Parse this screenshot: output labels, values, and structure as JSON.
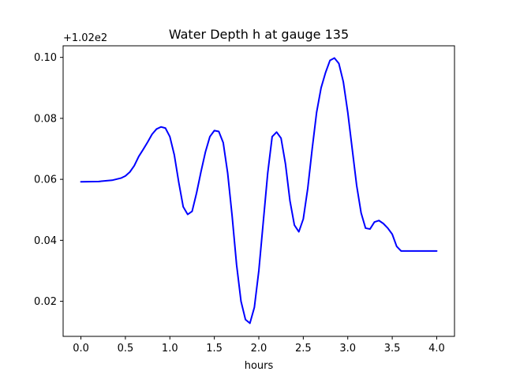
{
  "chart_data": {
    "type": "line",
    "title": "Water Depth h at gauge 135",
    "xlabel": "hours",
    "ylabel": "",
    "offset_label": "+1.02e2",
    "xlim": [
      -0.2,
      4.2
    ],
    "ylim": [
      0.0085,
      0.1038
    ],
    "xticks": [
      0.0,
      0.5,
      1.0,
      1.5,
      2.0,
      2.5,
      3.0,
      3.5,
      4.0
    ],
    "xtick_labels": [
      "0.0",
      "0.5",
      "1.0",
      "1.5",
      "2.0",
      "2.5",
      "3.0",
      "3.5",
      "4.0"
    ],
    "yticks": [
      0.02,
      0.04,
      0.06,
      0.08,
      0.1
    ],
    "ytick_labels": [
      "0.02",
      "0.04",
      "0.06",
      "0.08",
      "0.10"
    ],
    "grid": false,
    "series": [
      {
        "color": "#0000ff",
        "x": [
          0.0,
          0.2,
          0.35,
          0.45,
          0.5,
          0.55,
          0.6,
          0.65,
          0.7,
          0.75,
          0.8,
          0.85,
          0.9,
          0.95,
          1.0,
          1.05,
          1.1,
          1.15,
          1.2,
          1.25,
          1.3,
          1.35,
          1.4,
          1.45,
          1.5,
          1.55,
          1.6,
          1.65,
          1.7,
          1.75,
          1.8,
          1.85,
          1.9,
          1.95,
          2.0,
          2.05,
          2.1,
          2.15,
          2.2,
          2.25,
          2.3,
          2.35,
          2.4,
          2.45,
          2.5,
          2.55,
          2.6,
          2.65,
          2.7,
          2.75,
          2.8,
          2.85,
          2.9,
          2.95,
          3.0,
          3.05,
          3.1,
          3.15,
          3.2,
          3.25,
          3.3,
          3.35,
          3.4,
          3.45,
          3.5,
          3.55,
          3.6,
          3.65,
          3.7,
          3.75,
          3.8,
          3.85,
          3.9,
          3.95,
          4.0
        ],
        "y": [
          0.0592,
          0.0593,
          0.0597,
          0.0604,
          0.0611,
          0.0624,
          0.0645,
          0.0675,
          0.0698,
          0.0722,
          0.0748,
          0.0765,
          0.0772,
          0.0768,
          0.074,
          0.068,
          0.059,
          0.051,
          0.0485,
          0.0495,
          0.0555,
          0.0625,
          0.069,
          0.074,
          0.076,
          0.0757,
          0.072,
          0.062,
          0.048,
          0.032,
          0.02,
          0.014,
          0.0128,
          0.018,
          0.03,
          0.046,
          0.062,
          0.074,
          0.0755,
          0.0735,
          0.065,
          0.053,
          0.045,
          0.0428,
          0.047,
          0.057,
          0.07,
          0.082,
          0.09,
          0.095,
          0.099,
          0.0998,
          0.098,
          0.092,
          0.082,
          0.07,
          0.058,
          0.049,
          0.044,
          0.0437,
          0.046,
          0.0465,
          0.0455,
          0.044,
          0.042,
          0.038,
          0.0365,
          0.0365,
          0.0365,
          0.0365,
          0.0365,
          0.0365,
          0.0365,
          0.0365,
          0.0365
        ]
      }
    ]
  }
}
